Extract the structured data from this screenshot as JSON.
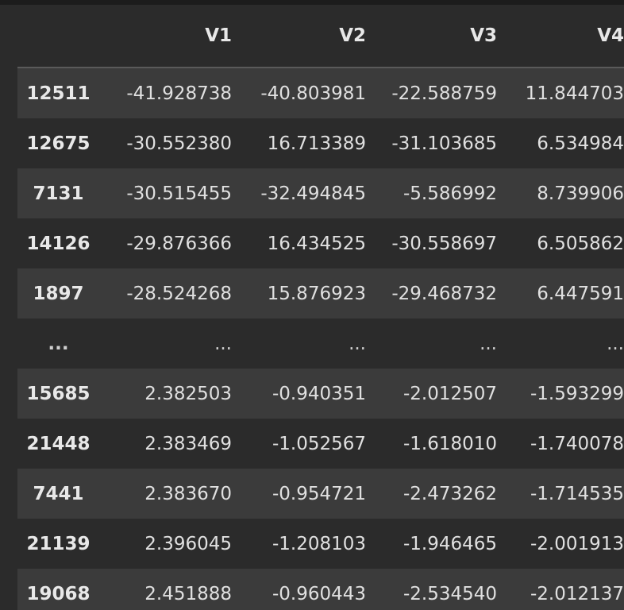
{
  "table": {
    "columns": [
      "",
      "V1",
      "V2",
      "V3",
      "V4"
    ],
    "rows": [
      {
        "index": "12511",
        "cells": [
          "-41.928738",
          "-40.803981",
          "-22.588759",
          "11.844703"
        ]
      },
      {
        "index": "12675",
        "cells": [
          "-30.552380",
          "16.713389",
          "-31.103685",
          "6.534984"
        ]
      },
      {
        "index": "7131",
        "cells": [
          "-30.515455",
          "-32.494845",
          "-5.586992",
          "8.739906"
        ]
      },
      {
        "index": "14126",
        "cells": [
          "-29.876366",
          "16.434525",
          "-30.558697",
          "6.505862"
        ]
      },
      {
        "index": "1897",
        "cells": [
          "-28.524268",
          "15.876923",
          "-29.468732",
          "6.447591"
        ]
      },
      {
        "index": "...",
        "cells": [
          "...",
          "...",
          "...",
          "..."
        ]
      },
      {
        "index": "15685",
        "cells": [
          "2.382503",
          "-0.940351",
          "-2.012507",
          "-1.593299"
        ]
      },
      {
        "index": "21448",
        "cells": [
          "2.383469",
          "-1.052567",
          "-1.618010",
          "-1.740078"
        ]
      },
      {
        "index": "7441",
        "cells": [
          "2.383670",
          "-0.954721",
          "-2.473262",
          "-1.714535"
        ]
      },
      {
        "index": "21139",
        "cells": [
          "2.396045",
          "-1.208103",
          "-1.946465",
          "-2.001913"
        ]
      },
      {
        "index": "19068",
        "cells": [
          "2.451888",
          "-0.960443",
          "-2.534540",
          "-2.012137"
        ]
      }
    ]
  },
  "colors": {
    "background": "#2b2b2b",
    "row_stripe": "#3b3b3b",
    "header_border": "#5a5a5a",
    "text": "#e4e4e4"
  }
}
